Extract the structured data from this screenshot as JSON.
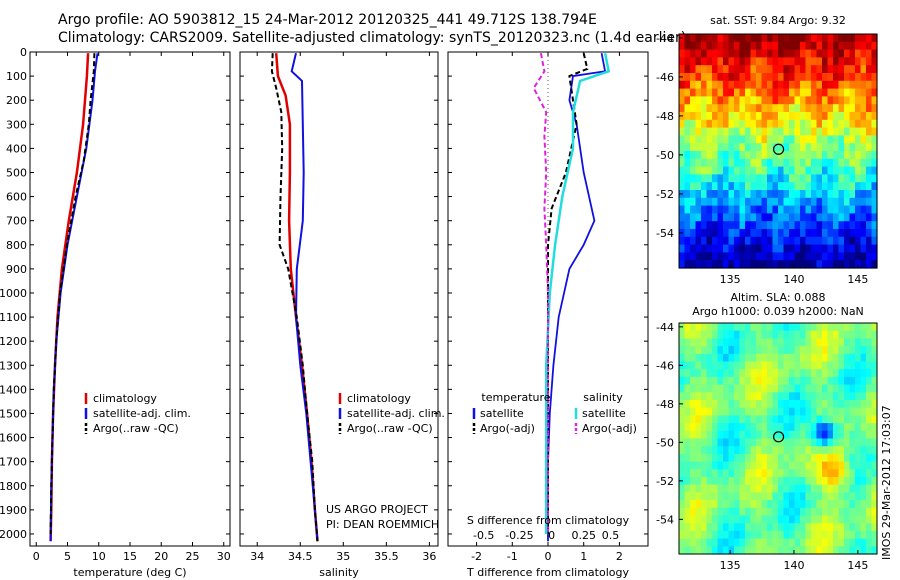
{
  "header": {
    "line1": "Argo profile: AO 5903812_15 24-Mar-2012 20120325_441 49.712S 138.794E",
    "line2": "Climatology: CARS2009. Satellite-adjusted climatology: synTS_20120323.nc (1.4d earlier)"
  },
  "credit": {
    "line1": "US ARGO PROJECT",
    "line2": "PI: DEAN ROEMMICH"
  },
  "timestamp": "IMOS 29-Mar-2012 17:03:07",
  "colors": {
    "climatology": "#e00000",
    "satellite_adj": "#1010e0",
    "argo": "#000000",
    "salinity_sat": "#22dddd",
    "salinity_argo": "#dd22dd"
  },
  "chart_data": [
    {
      "type": "line",
      "panel": "temperature",
      "xlabel": "temperature (deg C)",
      "ylabel": "",
      "xlim": [
        -1,
        31
      ],
      "ylim": [
        2050,
        0
      ],
      "xticks": [
        0,
        5,
        10,
        15,
        20,
        25,
        30
      ],
      "yticks": [
        0,
        100,
        200,
        300,
        400,
        500,
        600,
        700,
        800,
        900,
        1000,
        1100,
        1200,
        1300,
        1400,
        1500,
        1600,
        1700,
        1800,
        1900,
        2000
      ],
      "legend": [
        "climatology",
        "satellite-adj. clim.",
        "Argo(..raw -QC)"
      ],
      "series": [
        {
          "name": "climatology",
          "color": "#e00000",
          "width": 2.5,
          "dash": "",
          "points": [
            [
              8.3,
              5
            ],
            [
              8.1,
              100
            ],
            [
              7.5,
              300
            ],
            [
              6.5,
              500
            ],
            [
              5.2,
              700
            ],
            [
              4.1,
              900
            ],
            [
              3.4,
              1100
            ],
            [
              3.0,
              1300
            ],
            [
              2.7,
              1500
            ],
            [
              2.5,
              1700
            ],
            [
              2.4,
              1900
            ],
            [
              2.3,
              2030
            ]
          ]
        },
        {
          "name": "satellite-adj. clim.",
          "color": "#1010e0",
          "width": 2,
          "dash": "",
          "points": [
            [
              9.8,
              5
            ],
            [
              9.4,
              80
            ],
            [
              9.0,
              200
            ],
            [
              8.0,
              400
            ],
            [
              6.5,
              600
            ],
            [
              5.0,
              800
            ],
            [
              3.9,
              1000
            ],
            [
              3.2,
              1200
            ],
            [
              2.8,
              1400
            ],
            [
              2.6,
              1600
            ],
            [
              2.4,
              1800
            ],
            [
              2.3,
              2030
            ]
          ]
        },
        {
          "name": "Argo(..raw -QC)",
          "color": "#000000",
          "width": 2,
          "dash": "5,3",
          "points": [
            [
              9.3,
              5
            ],
            [
              9.2,
              80
            ],
            [
              8.7,
              200
            ],
            [
              8.4,
              300
            ],
            [
              7.6,
              450
            ],
            [
              6.3,
              600
            ],
            [
              4.9,
              800
            ],
            [
              3.8,
              1000
            ],
            [
              3.2,
              1200
            ],
            [
              2.8,
              1400
            ],
            [
              2.6,
              1600
            ],
            [
              2.4,
              1800
            ],
            [
              2.3,
              2000
            ]
          ]
        }
      ]
    },
    {
      "type": "line",
      "panel": "salinity",
      "xlabel": "salinity",
      "ylabel": "",
      "xlim": [
        33.8,
        36.1
      ],
      "ylim": [
        2050,
        0
      ],
      "xticks": [
        34,
        34.5,
        35,
        35.5,
        36
      ],
      "legend": [
        "climatology",
        "satellite-adj. clim.",
        "Argo(..raw -QC)"
      ],
      "series": [
        {
          "name": "climatology",
          "color": "#e00000",
          "width": 2.5,
          "dash": "",
          "points": [
            [
              34.22,
              5
            ],
            [
              34.24,
              100
            ],
            [
              34.33,
              180
            ],
            [
              34.38,
              300
            ],
            [
              34.38,
              500
            ],
            [
              34.37,
              700
            ],
            [
              34.39,
              900
            ],
            [
              34.45,
              1100
            ],
            [
              34.52,
              1300
            ],
            [
              34.58,
              1500
            ],
            [
              34.63,
              1700
            ],
            [
              34.67,
              1900
            ],
            [
              34.7,
              2030
            ]
          ]
        },
        {
          "name": "satellite-adj. clim.",
          "color": "#1010e0",
          "width": 2,
          "dash": "",
          "points": [
            [
              34.45,
              5
            ],
            [
              34.4,
              80
            ],
            [
              34.52,
              120
            ],
            [
              34.53,
              300
            ],
            [
              34.54,
              500
            ],
            [
              34.53,
              700
            ],
            [
              34.46,
              900
            ],
            [
              34.45,
              1100
            ],
            [
              34.5,
              1300
            ],
            [
              34.57,
              1500
            ],
            [
              34.62,
              1700
            ],
            [
              34.67,
              1900
            ],
            [
              34.7,
              2030
            ]
          ]
        },
        {
          "name": "Argo(..raw -QC)",
          "color": "#000000",
          "width": 2,
          "dash": "5,3",
          "points": [
            [
              34.18,
              5
            ],
            [
              34.17,
              80
            ],
            [
              34.22,
              150
            ],
            [
              34.28,
              250
            ],
            [
              34.29,
              400
            ],
            [
              34.27,
              600
            ],
            [
              34.26,
              800
            ],
            [
              34.36,
              900
            ],
            [
              34.46,
              1100
            ],
            [
              34.53,
              1300
            ],
            [
              34.58,
              1500
            ],
            [
              34.64,
              1700
            ],
            [
              34.67,
              1900
            ],
            [
              34.7,
              2030
            ]
          ]
        }
      ]
    },
    {
      "type": "line",
      "panel": "difference",
      "xlabel": "T difference from climatology",
      "xlabel_top": "S difference from climatology",
      "xlim": [
        -2.8,
        2.8
      ],
      "ylim": [
        2050,
        0
      ],
      "xticks": [
        -2,
        -1,
        0,
        1,
        2
      ],
      "sticks_labels": [
        "-0.5",
        "-0.25",
        "0",
        "0.25",
        "0.5"
      ],
      "sticks_positions": [
        -1.8,
        -0.8,
        0.1,
        1.0,
        1.75
      ],
      "legend_headers": [
        "temperature",
        "salinity"
      ],
      "legend_left": [
        "satellite",
        "Argo(-adj)"
      ],
      "legend_right": [
        "satellite",
        "Argo(-adj)"
      ],
      "series": [
        {
          "name": "T satellite",
          "color": "#1010e0",
          "width": 1.8,
          "dash": "",
          "points": [
            [
              1.5,
              5
            ],
            [
              1.6,
              80
            ],
            [
              0.7,
              100
            ],
            [
              0.6,
              200
            ],
            [
              0.8,
              300
            ],
            [
              1.0,
              500
            ],
            [
              1.3,
              700
            ],
            [
              1.0,
              800
            ],
            [
              0.6,
              900
            ],
            [
              0.3,
              1100
            ],
            [
              0.15,
              1300
            ],
            [
              0.05,
              1500
            ],
            [
              0.0,
              1700
            ],
            [
              0.0,
              1900
            ],
            [
              0.0,
              2030
            ]
          ]
        },
        {
          "name": "T Argo(-adj)",
          "color": "#000000",
          "width": 2,
          "dash": "5,3",
          "points": [
            [
              1.0,
              5
            ],
            [
              1.1,
              70
            ],
            [
              0.6,
              100
            ],
            [
              0.7,
              200
            ],
            [
              0.8,
              300
            ],
            [
              0.5,
              500
            ],
            [
              0.1,
              650
            ],
            [
              0.0,
              800
            ],
            [
              0.0,
              1000
            ],
            [
              0.0,
              1200
            ],
            [
              0.0,
              1500
            ],
            [
              0.0,
              2000
            ]
          ]
        },
        {
          "name": "S satellite",
          "color": "#22dddd",
          "width": 2.5,
          "dash": "",
          "points": [
            [
              1.6,
              5
            ],
            [
              1.7,
              80
            ],
            [
              0.9,
              120
            ],
            [
              0.7,
              250
            ],
            [
              0.7,
              400
            ],
            [
              0.4,
              600
            ],
            [
              0.2,
              800
            ],
            [
              0.05,
              1000
            ],
            [
              -0.05,
              1300
            ],
            [
              -0.05,
              1600
            ],
            [
              -0.05,
              1900
            ],
            [
              -0.05,
              2000
            ]
          ]
        },
        {
          "name": "S Argo(-adj)",
          "color": "#dd22dd",
          "width": 2,
          "dash": "5,3",
          "points": [
            [
              -0.2,
              5
            ],
            [
              -0.1,
              80
            ],
            [
              -0.4,
              150
            ],
            [
              -0.05,
              250
            ],
            [
              -0.1,
              350
            ],
            [
              -0.05,
              500
            ],
            [
              -0.1,
              650
            ],
            [
              -0.05,
              800
            ],
            [
              0.0,
              1000
            ],
            [
              0.0,
              1300
            ],
            [
              0.0,
              1600
            ],
            [
              0.0,
              2000
            ]
          ]
        }
      ]
    },
    {
      "type": "heatmap",
      "panel": "sst_map",
      "title": "sat. SST: 9.84  Argo: 9.32",
      "xlim": [
        131,
        146.5
      ],
      "ylim": [
        -55.8,
        -43.8
      ],
      "xticks": [
        135,
        140,
        145
      ],
      "yticks": [
        -44,
        -46,
        -48,
        -50,
        -52,
        -54
      ],
      "float": [
        138.794,
        -49.712
      ]
    },
    {
      "type": "heatmap",
      "panel": "sla_map",
      "title": "Altim. SLA: 0.088",
      "title2": "Argo h1000: 0.039 h2000: NaN",
      "xlim": [
        131,
        146.5
      ],
      "ylim": [
        -55.8,
        -43.8
      ],
      "xticks": [
        135,
        140,
        145
      ],
      "yticks": [
        -44,
        -46,
        -48,
        -50,
        -52,
        -54
      ],
      "float": [
        138.794,
        -49.712
      ]
    }
  ]
}
